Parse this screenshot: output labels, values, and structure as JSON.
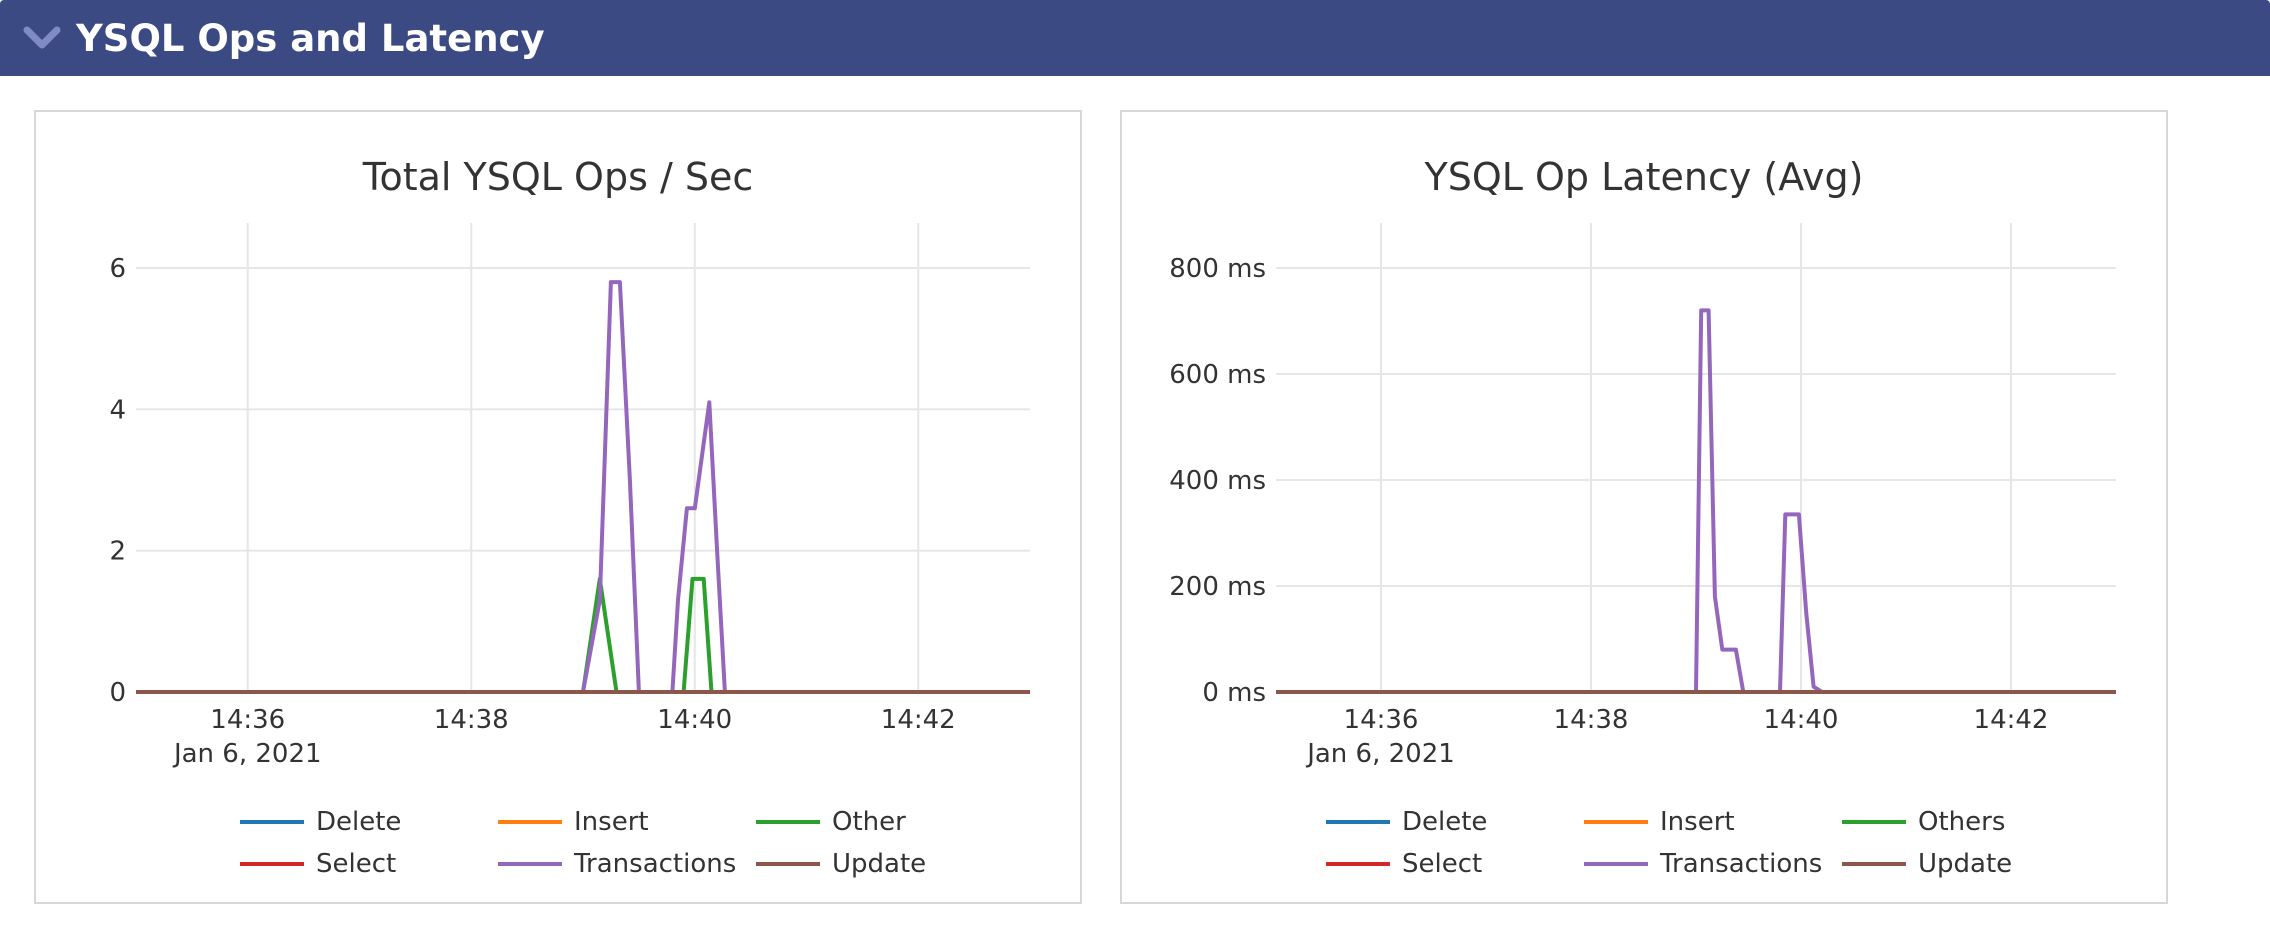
{
  "section": {
    "title": "YSQL Ops and Latency",
    "collapse_icon": "chevron-down-icon"
  },
  "chart_data": [
    {
      "type": "line",
      "title": "Total YSQL Ops / Sec",
      "xlabel": "",
      "ylabel": "",
      "x_ticks": [
        "14:36",
        "14:38",
        "14:40",
        "14:42"
      ],
      "x_tick_values": [
        36,
        38,
        40,
        42
      ],
      "x_sublabel": "Jan 6, 2021",
      "xlim": [
        35,
        43
      ],
      "y_ticks": [
        "0",
        "2",
        "4",
        "6"
      ],
      "y_tick_values": [
        0,
        2,
        4,
        6
      ],
      "ylim": [
        0,
        6.0
      ],
      "grid": true,
      "legend": "bottom",
      "series": [
        {
          "name": "Delete",
          "color": "#1f77b4",
          "points": [
            [
              35,
              0
            ],
            [
              43,
              0
            ]
          ]
        },
        {
          "name": "Insert",
          "color": "#ff7f0e",
          "points": [
            [
              35,
              0
            ],
            [
              43,
              0
            ]
          ]
        },
        {
          "name": "Other",
          "color": "#2ca02c",
          "points": [
            [
              35,
              0
            ],
            [
              39.0,
              0
            ],
            [
              39.15,
              1.6
            ],
            [
              39.3,
              0
            ],
            [
              39.6,
              0
            ],
            [
              39.9,
              0
            ],
            [
              39.98,
              1.6
            ],
            [
              40.08,
              1.6
            ],
            [
              40.15,
              0
            ],
            [
              43,
              0
            ]
          ]
        },
        {
          "name": "Select",
          "color": "#d62728",
          "points": [
            [
              35,
              0
            ],
            [
              43,
              0
            ]
          ]
        },
        {
          "name": "Transactions",
          "color": "#9467bd",
          "points": [
            [
              35,
              0
            ],
            [
              39.0,
              0
            ],
            [
              39.15,
              1.3
            ],
            [
              39.25,
              5.8
            ],
            [
              39.33,
              5.8
            ],
            [
              39.42,
              3.0
            ],
            [
              39.5,
              0
            ],
            [
              39.8,
              0
            ],
            [
              39.85,
              1.3
            ],
            [
              39.93,
              2.6
            ],
            [
              40.0,
              2.6
            ],
            [
              40.13,
              4.1
            ],
            [
              40.2,
              2.0
            ],
            [
              40.27,
              0
            ],
            [
              43,
              0
            ]
          ]
        },
        {
          "name": "Update",
          "color": "#8c564b",
          "points": [
            [
              35,
              0
            ],
            [
              43,
              0
            ]
          ]
        }
      ]
    },
    {
      "type": "line",
      "title": "YSQL Op Latency (Avg)",
      "xlabel": "",
      "ylabel": "",
      "x_ticks": [
        "14:36",
        "14:38",
        "14:40",
        "14:42"
      ],
      "x_tick_values": [
        36,
        38,
        40,
        42
      ],
      "x_sublabel": "Jan 6, 2021",
      "xlim": [
        35,
        43
      ],
      "y_ticks": [
        "0 ms",
        "200 ms",
        "400 ms",
        "600 ms",
        "800 ms"
      ],
      "y_tick_values": [
        0,
        200,
        400,
        600,
        800
      ],
      "ylim": [
        0,
        800
      ],
      "grid": true,
      "legend": "bottom",
      "series": [
        {
          "name": "Delete",
          "color": "#1f77b4",
          "points": [
            [
              35,
              0
            ],
            [
              43,
              0
            ]
          ]
        },
        {
          "name": "Insert",
          "color": "#ff7f0e",
          "points": [
            [
              35,
              0
            ],
            [
              43,
              0
            ]
          ]
        },
        {
          "name": "Others",
          "color": "#2ca02c",
          "points": [
            [
              35,
              0
            ],
            [
              43,
              0
            ]
          ]
        },
        {
          "name": "Select",
          "color": "#d62728",
          "points": [
            [
              35,
              0
            ],
            [
              43,
              0
            ]
          ]
        },
        {
          "name": "Transactions",
          "color": "#9467bd",
          "points": [
            [
              35,
              0
            ],
            [
              39.0,
              0
            ],
            [
              39.05,
              720
            ],
            [
              39.12,
              720
            ],
            [
              39.18,
              180
            ],
            [
              39.25,
              80
            ],
            [
              39.38,
              80
            ],
            [
              39.45,
              0
            ],
            [
              39.7,
              0
            ],
            [
              39.8,
              0
            ],
            [
              39.85,
              335
            ],
            [
              39.98,
              335
            ],
            [
              40.05,
              150
            ],
            [
              40.12,
              10
            ],
            [
              40.2,
              0
            ],
            [
              43,
              0
            ]
          ]
        },
        {
          "name": "Update",
          "color": "#8c564b",
          "points": [
            [
              35,
              0
            ],
            [
              43,
              0
            ]
          ]
        }
      ]
    }
  ]
}
